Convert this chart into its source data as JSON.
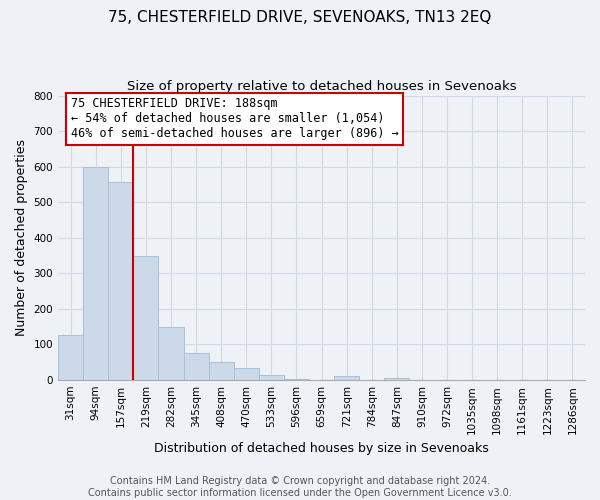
{
  "title": "75, CHESTERFIELD DRIVE, SEVENOAKS, TN13 2EQ",
  "subtitle": "Size of property relative to detached houses in Sevenoaks",
  "xlabel": "Distribution of detached houses by size in Sevenoaks",
  "ylabel": "Number of detached properties",
  "categories": [
    "31sqm",
    "94sqm",
    "157sqm",
    "219sqm",
    "282sqm",
    "345sqm",
    "408sqm",
    "470sqm",
    "533sqm",
    "596sqm",
    "659sqm",
    "721sqm",
    "784sqm",
    "847sqm",
    "910sqm",
    "972sqm",
    "1035sqm",
    "1098sqm",
    "1161sqm",
    "1223sqm",
    "1286sqm"
  ],
  "values": [
    128,
    600,
    557,
    350,
    148,
    75,
    50,
    33,
    14,
    3,
    0,
    10,
    0,
    7,
    0,
    0,
    0,
    0,
    0,
    0,
    0
  ],
  "bar_color": "#ccd9e8",
  "bar_edge_color": "#a8c0d8",
  "vline_color": "#cc0000",
  "vline_pos": 2.5,
  "annotation_title": "75 CHESTERFIELD DRIVE: 188sqm",
  "annotation_line1": "← 54% of detached houses are smaller (1,054)",
  "annotation_line2": "46% of semi-detached houses are larger (896) →",
  "ylim": [
    0,
    800
  ],
  "yticks": [
    0,
    100,
    200,
    300,
    400,
    500,
    600,
    700,
    800
  ],
  "footer1": "Contains HM Land Registry data © Crown copyright and database right 2024.",
  "footer2": "Contains public sector information licensed under the Open Government Licence v3.0.",
  "bg_color": "#eef2f7",
  "grid_color": "#d0d8e4",
  "title_fontsize": 11,
  "subtitle_fontsize": 9.5,
  "ylabel_fontsize": 9,
  "xlabel_fontsize": 9,
  "tick_fontsize": 7.5,
  "annotation_fontsize": 8.5,
  "footer_fontsize": 7
}
